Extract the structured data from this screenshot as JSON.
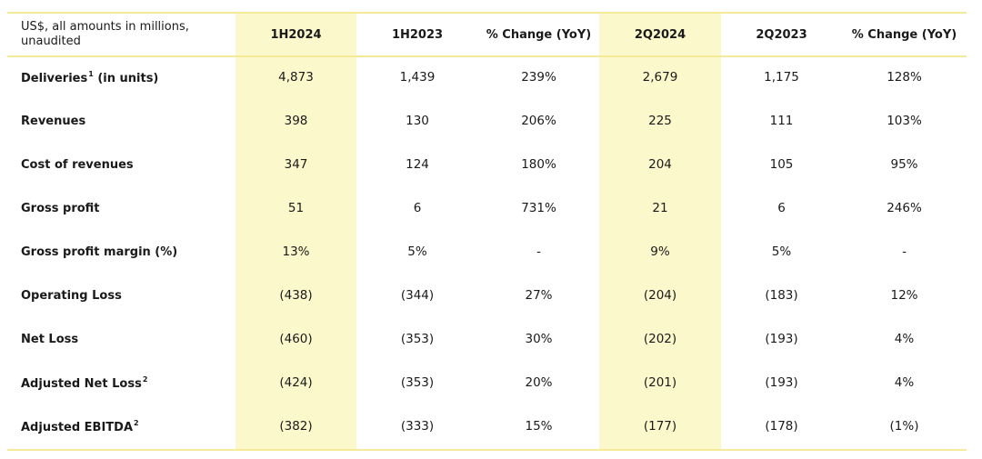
{
  "header": {
    "note": "US$, all amounts in millions, unaudited",
    "columns": [
      "1H2024",
      "1H2023",
      "% Change (YoY)",
      "2Q2024",
      "2Q2023",
      "% Change (YoY)"
    ]
  },
  "rows": [
    {
      "label": "Deliveries",
      "sup": "1",
      "suffix": " (in units)",
      "values": [
        "4,873",
        "1,439",
        "239%",
        "2,679",
        "1,175",
        "128%"
      ]
    },
    {
      "label": "Revenues",
      "sup": "",
      "suffix": "",
      "values": [
        "398",
        "130",
        "206%",
        "225",
        "111",
        "103%"
      ]
    },
    {
      "label": "Cost of revenues",
      "sup": "",
      "suffix": "",
      "values": [
        "347",
        "124",
        "180%",
        "204",
        "105",
        "95%"
      ]
    },
    {
      "label": "Gross profit",
      "sup": "",
      "suffix": "",
      "values": [
        "51",
        "6",
        "731%",
        "21",
        "6",
        "246%"
      ]
    },
    {
      "label": "Gross profit margin (%)",
      "sup": "",
      "suffix": "",
      "values": [
        "13%",
        "5%",
        "-",
        "9%",
        "5%",
        "-"
      ]
    },
    {
      "label": "Operating Loss",
      "sup": "",
      "suffix": "",
      "values": [
        "(438)",
        "(344)",
        "27%",
        "(204)",
        "(183)",
        "12%"
      ]
    },
    {
      "label": "Net Loss",
      "sup": "",
      "suffix": "",
      "values": [
        "(460)",
        "(353)",
        "30%",
        "(202)",
        "(193)",
        "4%"
      ]
    },
    {
      "label": "Adjusted Net Loss",
      "sup": "2",
      "suffix": "",
      "values": [
        "(424)",
        "(353)",
        "20%",
        "(201)",
        "(193)",
        "4%"
      ]
    },
    {
      "label": "Adjusted EBITDA",
      "sup": "2",
      "suffix": "",
      "values": [
        "(382)",
        "(333)",
        "15%",
        "(177)",
        "(178)",
        "(1%)"
      ]
    }
  ],
  "colors": {
    "highlight": "#fbf8cc",
    "rule": "#f4ea9a"
  }
}
